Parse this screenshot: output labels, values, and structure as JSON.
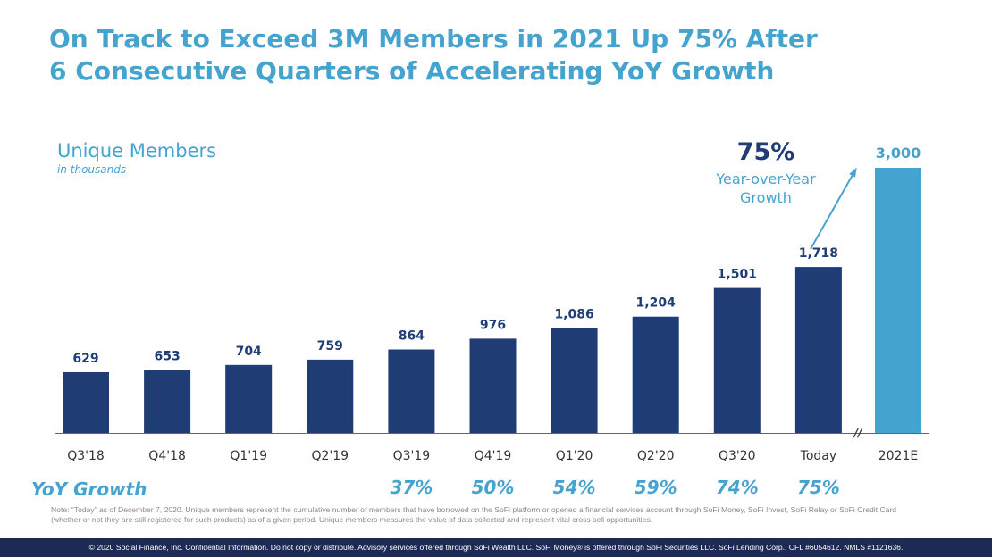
{
  "title": {
    "line1": "On Track to Exceed 3M Members in 2021 Up 75% After",
    "line2": "6 Consecutive Quarters of Accelerating YoY Growth"
  },
  "subtitle": "Unique Members",
  "unit": "in thousands",
  "callout": {
    "pct": "75%",
    "text_line1": "Year-over-Year",
    "text_line2": "Growth"
  },
  "axis_break": "//",
  "yoy": {
    "label": "YoY Growth",
    "values": [
      "37%",
      "50%",
      "54%",
      "59%",
      "74%",
      "75%"
    ]
  },
  "note": "Note: “Today” as of December 7, 2020. Unique members represent the cumulative number of members that have borrowed on the SoFi platform or opened a financial services account through SoFi Money, SoFi Invest, SoFi Relay or SoFi Credit Card (whether or not they are still registered for such products) as of a given period.  Unique members measures the value of data collected and represent vital cross sell opportunities.",
  "footer": "© 2020 Social Finance, Inc. Confidential Information. Do not copy or distribute. Advisory services offered through SoFi Wealth LLC. SoFi Money® is offered through SoFi Securities LLC. SoFi Lending Corp., CFL #6054612. NMLS #1121636.",
  "colors": {
    "bar": "#1f3d74",
    "bar_estimate": "#45a3cf",
    "accent": "#45a3cf",
    "footer_bg": "#1c2a55"
  },
  "chart_data": {
    "type": "bar",
    "categories": [
      "Q3'18",
      "Q4'18",
      "Q1'19",
      "Q2'19",
      "Q3'19",
      "Q4'19",
      "Q1'20",
      "Q2'20",
      "Q3'20",
      "Today",
      "2021E"
    ],
    "values": [
      629,
      653,
      704,
      759,
      864,
      976,
      1086,
      1204,
      1501,
      1718,
      3000
    ],
    "labels": [
      "629",
      "653",
      "704",
      "759",
      "864",
      "976",
      "1,086",
      "1,204",
      "1,501",
      "1,718",
      "3,000"
    ],
    "title": "Unique Members",
    "xlabel": "",
    "ylabel": "",
    "grid": false,
    "legend": "none"
  }
}
